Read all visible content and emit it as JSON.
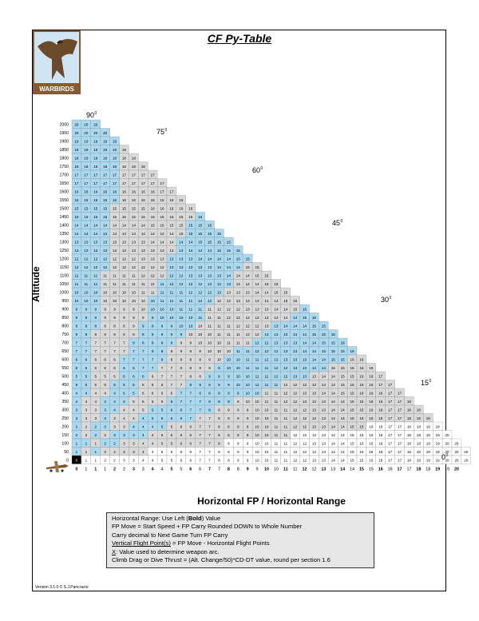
{
  "title": "CF Py-Table",
  "logo_text": "WARBIRDS",
  "version": "Version 3.1.0 © S.J.Pancrazio",
  "axis": {
    "y_title": "Altitude",
    "x_title": "Horizontal FP / Horizontal Range"
  },
  "angle_labels": [
    {
      "text": "90",
      "deg": "0"
    },
    {
      "text": "75",
      "deg": "0"
    },
    {
      "text": "60",
      "deg": "0"
    },
    {
      "text": "45",
      "deg": "0"
    },
    {
      "text": "30",
      "deg": "0"
    },
    {
      "text": "15",
      "deg": "0"
    },
    {
      "text": "0",
      "deg": "0"
    }
  ],
  "legend": {
    "line1_pre": "Horizontal Range: Use Left (",
    "line1_bold": "Bold",
    "line1_post": ") Value",
    "line2": "FP Move = Start Speed + FP Carry Rounded DOWN to Whole Number",
    "line3": "Carry decimal to Next Game Turn FP Carry",
    "line4_u": "Vertical Flight Point(s)",
    "line4_rest": " = FP Move - Horizontal Flight Points",
    "line5_u": "X",
    "line5_rest": ": Value used to determine weapon arc.",
    "line6": "Climb Drag or Dive Thrust = (Alt. Change/50)*CD-DT value, round per section 1.6"
  },
  "chart_data": {
    "type": "table",
    "title": "CF Py-Table",
    "xlabel": "Horizontal FP / Horizontal Range",
    "ylabel": "Altitude",
    "altitudes": [
      2000,
      1950,
      1900,
      1850,
      1800,
      1750,
      1700,
      1650,
      1600,
      1550,
      1500,
      1450,
      1400,
      1350,
      1300,
      1250,
      1200,
      1150,
      1100,
      1050,
      1000,
      950,
      900,
      850,
      800,
      750,
      700,
      650,
      600,
      550,
      500,
      450,
      400,
      350,
      300,
      250,
      200,
      150,
      100,
      50,
      0
    ],
    "x_columns_bold": [
      "0",
      "1",
      "2",
      "3",
      "4",
      "5",
      "6",
      "7",
      "8",
      "9",
      "10",
      "11",
      "12",
      "13",
      "14",
      "15",
      "16",
      "17",
      "18",
      "19",
      "20"
    ],
    "x_columns_plain": [
      "",
      "1",
      "1",
      "2",
      "3",
      "4",
      "5",
      "6",
      "7",
      "8",
      "9",
      "10",
      "11",
      "12",
      "13",
      "14",
      "15",
      "16",
      "17",
      "18",
      "19"
    ],
    "cell_rule": "value = round(sqrt((altitude/100)^2 + horizontal^2)) at half-point resolution; triangle shape, cells only where the angle is at most 90 degrees",
    "max_value": 20
  }
}
